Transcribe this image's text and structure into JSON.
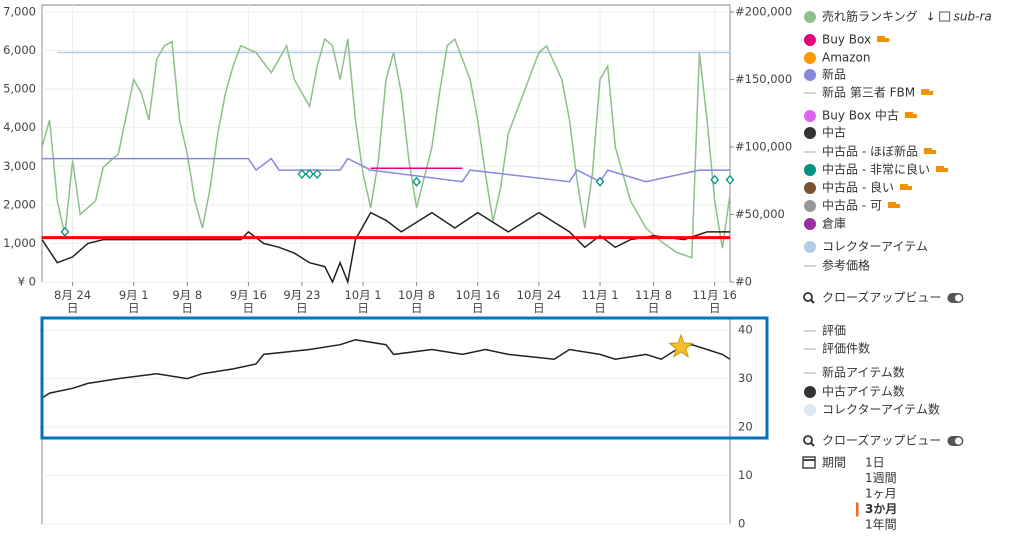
{
  "chart_data": [
    {
      "type": "line",
      "xlim": [
        "08-20",
        "11-18"
      ],
      "xticks": [
        {
          "value": "08-24",
          "label": "8月 24日"
        },
        {
          "value": "09-01",
          "label": "9月 1日"
        },
        {
          "value": "09-08",
          "label": "9月 8日"
        },
        {
          "value": "09-16",
          "label": "9月 16日"
        },
        {
          "value": "09-23",
          "label": "9月 23日"
        },
        {
          "value": "10-01",
          "label": "10月 1日"
        },
        {
          "value": "10-08",
          "label": "10月 8日"
        },
        {
          "value": "10-16",
          "label": "10月 16日"
        },
        {
          "value": "10-24",
          "label": "10月 24日"
        },
        {
          "value": "11-01",
          "label": "11月 1日"
        },
        {
          "value": "11-08",
          "label": "11月 8日"
        },
        {
          "value": "11-16",
          "label": "11月 16日"
        }
      ],
      "ylim": [
        0,
        7000
      ],
      "yticks": [
        {
          "value": 0,
          "label": "¥ 0"
        },
        {
          "value": 1000,
          "label": "1,000"
        },
        {
          "value": 2000,
          "label": "2,000"
        },
        {
          "value": 3000,
          "label": "3,000"
        },
        {
          "value": 4000,
          "label": "4,000"
        },
        {
          "value": 5000,
          "label": "5,000"
        },
        {
          "value": 6000,
          "label": "6,000"
        },
        {
          "value": 7000,
          "label": "7,000"
        }
      ],
      "y2lim": [
        0,
        200000
      ],
      "y2ticks": [
        {
          "value": 0,
          "label": "#0"
        },
        {
          "value": 50000,
          "label": "#50,000"
        },
        {
          "value": 100000,
          "label": "#100,000"
        },
        {
          "value": 150000,
          "label": "#150,000"
        },
        {
          "value": 200000,
          "label": "#200,000"
        }
      ],
      "grid": true,
      "series": [
        {
          "color": "#b4cde6",
          "x": [
            "08-22",
            "11-18"
          ],
          "values": [
            5950,
            5950
          ]
        },
        {
          "color": "#8fbf8a",
          "axis": "y2",
          "x": [
            "08-20",
            "08-21",
            "08-22",
            "08-23",
            "08-24",
            "08-25",
            "08-27",
            "08-28",
            "08-30",
            "09-01",
            "09-02",
            "09-03",
            "09-04",
            "09-05",
            "09-06",
            "09-07",
            "09-08",
            "09-09",
            "09-10",
            "09-11",
            "09-12",
            "09-13",
            "09-14",
            "09-15",
            "09-17",
            "09-19",
            "09-21",
            "09-22",
            "09-24",
            "09-25",
            "09-26",
            "09-27",
            "09-28",
            "09-29",
            "09-30",
            "10-01",
            "10-02",
            "10-03",
            "10-04",
            "10-05",
            "10-06",
            "10-07",
            "10-08",
            "10-10",
            "10-11",
            "10-12",
            "10-13",
            "10-15",
            "10-16",
            "10-17",
            "10-18",
            "10-19",
            "10-20",
            "10-22",
            "10-24",
            "10-25",
            "10-27",
            "10-28",
            "10-29",
            "10-30",
            "10-31",
            "11-01",
            "11-02",
            "11-03",
            "11-05",
            "11-07",
            "11-09",
            "11-11",
            "11-13",
            "11-14",
            "11-15",
            "11-16",
            "11-17",
            "11-18"
          ],
          "values": [
            100000,
            120000,
            60000,
            35000,
            90000,
            50000,
            60000,
            85000,
            95000,
            150000,
            140000,
            120000,
            165000,
            175000,
            178000,
            120000,
            95000,
            60000,
            40000,
            70000,
            110000,
            140000,
            160000,
            175000,
            170000,
            155000,
            175000,
            150000,
            130000,
            160000,
            180000,
            175000,
            150000,
            180000,
            120000,
            80000,
            55000,
            90000,
            150000,
            170000,
            140000,
            90000,
            55000,
            100000,
            140000,
            175000,
            180000,
            150000,
            120000,
            80000,
            45000,
            70000,
            110000,
            140000,
            170000,
            175000,
            150000,
            120000,
            75000,
            40000,
            80000,
            150000,
            160000,
            100000,
            60000,
            40000,
            30000,
            22000,
            18000,
            170000,
            120000,
            60000,
            25000,
            65000
          ]
        },
        {
          "color": "#8888dd",
          "x": [
            "08-20",
            "09-16",
            "09-17",
            "09-19",
            "09-20",
            "09-28",
            "09-29",
            "10-02",
            "10-14",
            "10-15",
            "10-28",
            "10-29",
            "11-01",
            "11-02",
            "11-07",
            "11-14",
            "11-18"
          ],
          "values": [
            3200,
            3200,
            2900,
            3200,
            2900,
            2900,
            3200,
            2900,
            2600,
            2900,
            2600,
            2900,
            2600,
            2900,
            2600,
            2900,
            2900
          ]
        },
        {
          "color": "#e4007f",
          "x": [
            "10-02",
            "10-14"
          ],
          "values": [
            2950,
            2950
          ]
        },
        {
          "color": "#222222",
          "x": [
            "08-20",
            "08-22",
            "08-24",
            "08-26",
            "08-28",
            "09-15",
            "09-16",
            "09-18",
            "09-20",
            "09-22",
            "09-24",
            "09-26",
            "09-27",
            "09-28",
            "09-29",
            "09-30",
            "10-02",
            "10-04",
            "10-06",
            "10-10",
            "10-13",
            "10-16",
            "10-20",
            "10-24",
            "10-28",
            "10-30",
            "11-01",
            "11-03",
            "11-05",
            "11-08",
            "11-12",
            "11-15",
            "11-18"
          ],
          "values": [
            1100,
            500,
            650,
            1000,
            1100,
            1100,
            1300,
            1000,
            900,
            750,
            500,
            400,
            0,
            500,
            0,
            1100,
            1800,
            1600,
            1300,
            1800,
            1400,
            1800,
            1300,
            1800,
            1300,
            900,
            1200,
            900,
            1100,
            1200,
            1100,
            1300,
            1300
          ]
        },
        {
          "color": "#ff0000",
          "x": [
            "08-20",
            "11-18"
          ],
          "values": [
            1150,
            1150
          ],
          "width": 3
        },
        {
          "color": "#00927e",
          "marker": "diamond",
          "x": [
            "08-23",
            "09-23",
            "09-24",
            "09-25",
            "10-08",
            "11-01",
            "11-16",
            "11-18"
          ],
          "values": [
            1300,
            2800,
            2800,
            2800,
            2600,
            2600,
            2650,
            2650
          ]
        }
      ]
    },
    {
      "type": "line",
      "xlim": [
        "08-20",
        "11-18"
      ],
      "ylim": [
        0,
        42.5
      ],
      "yticks": [
        0,
        10,
        20,
        30,
        40
      ],
      "grid": true,
      "series": [
        {
          "color": "#222222",
          "x": [
            "08-20",
            "08-21",
            "08-24",
            "08-26",
            "08-30",
            "09-04",
            "09-08",
            "09-10",
            "09-14",
            "09-17",
            "09-18",
            "09-24",
            "09-28",
            "09-30",
            "10-04",
            "10-05",
            "10-10",
            "10-14",
            "10-17",
            "10-20",
            "10-26",
            "10-28",
            "11-01",
            "11-03",
            "11-07",
            "11-09",
            "11-11",
            "11-13",
            "11-15",
            "11-17",
            "11-18"
          ],
          "values": [
            26,
            27,
            28,
            29,
            30,
            31,
            30,
            31,
            32,
            33,
            35,
            36,
            37,
            38,
            37,
            35,
            36,
            35,
            36,
            35,
            34,
            36,
            35,
            34,
            35,
            34,
            36,
            37,
            36,
            35,
            34
          ]
        }
      ]
    }
  ],
  "sidebar": {
    "sections": [
      {
        "items": [
          {
            "label": "売れ筋ランキング",
            "color": "#8fbf8a",
            "extra": "sub-ra"
          },
          {
            "label": "Buy Box",
            "color": "#e4007f",
            "truck": true
          },
          {
            "label": "Amazon",
            "color": "#ff9900"
          },
          {
            "label": "新品",
            "color": "#8888dd"
          },
          {
            "label": "新品 第三者 FBM",
            "truck": true
          },
          {
            "label": "Buy Box 中古",
            "color": "#dd66ee",
            "truck": true
          },
          {
            "label": "中古",
            "color": "#333333"
          },
          {
            "label": "中古品 - ほぼ新品",
            "truck": true
          },
          {
            "label": "中古品 - 非常に良い",
            "color": "#00927e",
            "truck": true
          },
          {
            "label": "中古品 - 良い",
            "color": "#7a5230",
            "truck": true
          },
          {
            "label": "中古品 - 可",
            "color": "#999999",
            "truck": true
          },
          {
            "label": "倉庫",
            "color": "#9a2fa0"
          },
          {
            "label": "コレクターアイテム",
            "color": "#b4cde6"
          },
          {
            "label": "参考価格"
          }
        ],
        "closeup": "クローズアップビュー"
      },
      {
        "items": [
          {
            "label": "評価"
          },
          {
            "label": "評価件数"
          },
          {
            "label": "新品アイテム数"
          },
          {
            "label": "中古アイテム数",
            "color": "#333333"
          },
          {
            "label": "コレクターアイテム数",
            "color": "#dde8f3"
          }
        ],
        "closeup": "クローズアップビュー"
      }
    ],
    "period_label": "期間",
    "periods": [
      {
        "label": "1日"
      },
      {
        "label": "1週間"
      },
      {
        "label": "1ヶ月"
      },
      {
        "label": "3か月",
        "selected": true
      },
      {
        "label": "1年間"
      }
    ]
  }
}
